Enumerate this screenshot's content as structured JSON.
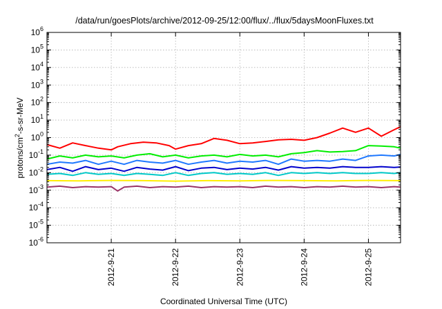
{
  "chart_data": {
    "type": "line",
    "title": "/data/run/goesPlots/archive/2012-09-25/12:00/flux/../flux/5daysMoonFluxes.txt",
    "xlabel": "Coordinated Universal Time (UTC)",
    "ylabel_parts": [
      "protons/cm",
      "2",
      "-s-sr-MeV"
    ],
    "yscale": "log",
    "ylim_exp": [
      -6,
      6
    ],
    "y_ticks": [
      {
        "base": "10",
        "exp": "6"
      },
      {
        "base": "10",
        "exp": "5"
      },
      {
        "base": "10",
        "exp": "4"
      },
      {
        "base": "10",
        "exp": "3"
      },
      {
        "base": "10",
        "exp": "2"
      },
      {
        "base": "10",
        "exp": "1"
      },
      {
        "base": "10",
        "exp": "0"
      },
      {
        "base": "10",
        "exp": "-1"
      },
      {
        "base": "10",
        "exp": "-2"
      },
      {
        "base": "10",
        "exp": "-3"
      },
      {
        "base": "10",
        "exp": "-4"
      },
      {
        "base": "10",
        "exp": "-5"
      },
      {
        "base": "10",
        "exp": "-6"
      }
    ],
    "x_range_days": [
      0,
      5.5
    ],
    "x_tick_labels": [
      "2012-9-21",
      "2012-9-22",
      "2012-9-23",
      "2012-9-24",
      "2012-9-25"
    ],
    "x_tick_days": [
      1,
      2,
      3,
      4,
      5
    ],
    "grid": true,
    "series": [
      {
        "color": "#ff0000",
        "x": [
          0,
          0.2,
          0.4,
          0.6,
          0.8,
          1.0,
          1.1,
          1.3,
          1.5,
          1.7,
          1.9,
          2.0,
          2.2,
          2.4,
          2.6,
          2.8,
          3.0,
          3.2,
          3.4,
          3.6,
          3.8,
          4.0,
          4.2,
          4.4,
          4.6,
          4.8,
          5.0,
          5.2,
          5.4,
          5.5
        ],
        "y": [
          0.4,
          0.25,
          0.5,
          0.35,
          0.25,
          0.2,
          0.3,
          0.45,
          0.55,
          0.5,
          0.35,
          0.22,
          0.35,
          0.45,
          0.9,
          0.7,
          0.45,
          0.5,
          0.6,
          0.75,
          0.8,
          0.7,
          1.0,
          1.8,
          3.5,
          2.0,
          3.5,
          1.2,
          2.8,
          4.2
        ]
      },
      {
        "color": "#00ee00",
        "x": [
          0,
          0.2,
          0.4,
          0.6,
          0.8,
          1.0,
          1.2,
          1.4,
          1.6,
          1.8,
          2.0,
          2.2,
          2.4,
          2.6,
          2.8,
          3.0,
          3.2,
          3.4,
          3.6,
          3.8,
          4.0,
          4.2,
          4.4,
          4.6,
          4.8,
          5.0,
          5.2,
          5.4,
          5.5
        ],
        "y": [
          0.06,
          0.09,
          0.07,
          0.1,
          0.08,
          0.09,
          0.07,
          0.1,
          0.12,
          0.08,
          0.1,
          0.07,
          0.09,
          0.1,
          0.08,
          0.11,
          0.09,
          0.1,
          0.08,
          0.12,
          0.14,
          0.18,
          0.15,
          0.16,
          0.18,
          0.35,
          0.33,
          0.3,
          0.25
        ]
      },
      {
        "color": "#1e78ff",
        "x": [
          0,
          0.2,
          0.4,
          0.6,
          0.8,
          1.0,
          1.2,
          1.4,
          1.6,
          1.8,
          2.0,
          2.2,
          2.4,
          2.6,
          2.8,
          3.0,
          3.2,
          3.4,
          3.6,
          3.8,
          4.0,
          4.2,
          4.4,
          4.6,
          4.8,
          5.0,
          5.2,
          5.4,
          5.5
        ],
        "y": [
          0.03,
          0.04,
          0.035,
          0.05,
          0.03,
          0.045,
          0.03,
          0.05,
          0.04,
          0.035,
          0.05,
          0.03,
          0.04,
          0.05,
          0.035,
          0.045,
          0.04,
          0.05,
          0.03,
          0.06,
          0.045,
          0.05,
          0.045,
          0.06,
          0.05,
          0.09,
          0.1,
          0.09,
          0.11
        ]
      },
      {
        "color": "#0000cc",
        "x": [
          0,
          0.2,
          0.4,
          0.6,
          0.8,
          1.0,
          1.2,
          1.4,
          1.6,
          1.8,
          2.0,
          2.2,
          2.4,
          2.6,
          2.8,
          3.0,
          3.2,
          3.4,
          3.6,
          3.8,
          4.0,
          4.2,
          4.4,
          4.6,
          4.8,
          5.0,
          5.2,
          5.4,
          5.5
        ],
        "y": [
          0.015,
          0.02,
          0.012,
          0.022,
          0.015,
          0.018,
          0.012,
          0.02,
          0.016,
          0.014,
          0.022,
          0.013,
          0.018,
          0.02,
          0.015,
          0.018,
          0.016,
          0.02,
          0.014,
          0.022,
          0.018,
          0.02,
          0.018,
          0.022,
          0.02,
          0.02,
          0.022,
          0.02,
          0.021
        ]
      },
      {
        "color": "#00c8c8",
        "x": [
          0,
          0.2,
          0.4,
          0.6,
          0.8,
          1.0,
          1.2,
          1.4,
          1.6,
          1.8,
          2.0,
          2.2,
          2.4,
          2.6,
          2.8,
          3.0,
          3.2,
          3.4,
          3.6,
          3.8,
          4.0,
          4.2,
          4.4,
          4.6,
          4.8,
          5.0,
          5.2,
          5.4,
          5.5
        ],
        "y": [
          0.008,
          0.009,
          0.007,
          0.01,
          0.008,
          0.009,
          0.007,
          0.009,
          0.008,
          0.007,
          0.01,
          0.007,
          0.009,
          0.01,
          0.008,
          0.009,
          0.008,
          0.01,
          0.007,
          0.01,
          0.009,
          0.01,
          0.009,
          0.01,
          0.009,
          0.009,
          0.01,
          0.009,
          0.01
        ]
      },
      {
        "color": "#ffee00",
        "x": [
          0,
          0.5,
          1.0,
          1.5,
          2.0,
          2.5,
          3.0,
          3.5,
          4.0,
          4.5,
          5.0,
          5.5
        ],
        "y": [
          0.0035,
          0.0034,
          0.0036,
          0.0035,
          0.0033,
          0.0035,
          0.0034,
          0.0036,
          0.0035,
          0.0034,
          0.0036,
          0.0035
        ]
      },
      {
        "color": "#993366",
        "x": [
          0,
          0.2,
          0.4,
          0.6,
          0.8,
          1.0,
          1.1,
          1.2,
          1.4,
          1.6,
          1.8,
          2.0,
          2.2,
          2.4,
          2.6,
          2.8,
          3.0,
          3.2,
          3.4,
          3.6,
          3.8,
          4.0,
          4.2,
          4.4,
          4.6,
          4.8,
          5.0,
          5.2,
          5.4,
          5.5
        ],
        "y": [
          0.0015,
          0.0017,
          0.0014,
          0.0016,
          0.0015,
          0.0016,
          0.0009,
          0.0015,
          0.0017,
          0.0014,
          0.0016,
          0.0015,
          0.0017,
          0.0014,
          0.0016,
          0.0015,
          0.0016,
          0.0014,
          0.0017,
          0.0015,
          0.0016,
          0.0014,
          0.0016,
          0.0015,
          0.0017,
          0.0015,
          0.0016,
          0.0014,
          0.0016,
          0.0015
        ]
      }
    ]
  }
}
